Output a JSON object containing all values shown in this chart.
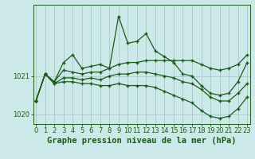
{
  "title": "Graphe pression niveau de la mer (hPa)",
  "bg_color": "#cde8e8",
  "grid_color": "#a8c8c8",
  "line_color": "#1a5c1a",
  "hours": [
    0,
    1,
    2,
    3,
    4,
    5,
    6,
    7,
    8,
    9,
    10,
    11,
    12,
    13,
    14,
    15,
    16,
    17,
    18,
    19,
    20,
    21,
    22,
    23
  ],
  "s_main": [
    1020.35,
    1021.05,
    1020.85,
    1021.35,
    1021.55,
    1021.2,
    1021.25,
    1021.3,
    1021.2,
    1022.55,
    1021.85,
    1021.9,
    1022.1,
    1021.65,
    1021.5,
    1021.35,
    1021.05,
    1021.0,
    1020.75,
    1020.55,
    1020.5,
    1020.55,
    1020.85,
    1021.35
  ],
  "s_upper": [
    1020.35,
    1021.05,
    1020.85,
    1021.15,
    1021.1,
    1021.05,
    1021.1,
    1021.1,
    1021.2,
    1021.3,
    1021.35,
    1021.35,
    1021.4,
    1021.4,
    1021.4,
    1021.4,
    1021.4,
    1021.4,
    1021.3,
    1021.2,
    1021.15,
    1021.2,
    1021.3,
    1021.55
  ],
  "s_mid": [
    1020.35,
    1021.05,
    1020.8,
    1020.95,
    1020.95,
    1020.9,
    1020.95,
    1020.9,
    1021.0,
    1021.05,
    1021.05,
    1021.1,
    1021.1,
    1021.05,
    1021.0,
    1020.95,
    1020.85,
    1020.8,
    1020.65,
    1020.45,
    1020.35,
    1020.35,
    1020.55,
    1020.8
  ],
  "s_lower": [
    1020.35,
    1021.05,
    1020.8,
    1020.85,
    1020.85,
    1020.8,
    1020.8,
    1020.75,
    1020.75,
    1020.8,
    1020.75,
    1020.75,
    1020.75,
    1020.7,
    1020.6,
    1020.5,
    1020.4,
    1020.3,
    1020.1,
    1019.95,
    1019.9,
    1019.95,
    1020.15,
    1020.45
  ],
  "ylim_min": 1019.75,
  "ylim_max": 1022.85,
  "yticks": [
    1020,
    1021
  ],
  "title_fontsize": 7.5,
  "tick_fontsize": 6.0
}
